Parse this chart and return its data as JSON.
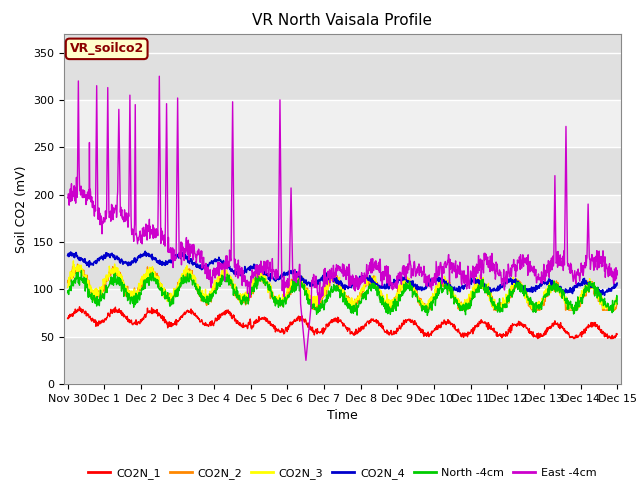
{
  "title": "VR North Vaisala Profile",
  "ylabel": "Soil CO2 (mV)",
  "xlabel": "Time",
  "annotation": "VR_soilco2",
  "ylim": [
    0,
    370
  ],
  "yticks": [
    0,
    50,
    100,
    150,
    200,
    250,
    300,
    350
  ],
  "legend_labels": [
    "CO2N_1",
    "CO2N_2",
    "CO2N_3",
    "CO2N_4",
    "North -4cm",
    "East -4cm"
  ],
  "legend_colors": [
    "#ff0000",
    "#ff8800",
    "#ffff00",
    "#0000cc",
    "#00cc00",
    "#cc00cc"
  ],
  "line_colors": [
    "#ff0000",
    "#ff8800",
    "#ffff00",
    "#0000cc",
    "#00cc00",
    "#cc00cc"
  ],
  "xtick_labels": [
    "Nov 30",
    "Dec 1",
    "Dec 2",
    "Dec 3",
    "Dec 4",
    "Dec 5",
    "Dec 6",
    "Dec 7",
    "Dec 8",
    "Dec 9",
    "Dec 10",
    "Dec 11",
    "Dec 12",
    "Dec 13",
    "Dec 14",
    "Dec 15"
  ],
  "background_color": "#ffffff",
  "plot_bg_color": "#e0e0e0",
  "white_band_ranges": [
    [
      50,
      100
    ],
    [
      150,
      200
    ],
    [
      250,
      300
    ]
  ],
  "title_fontsize": 11,
  "axis_fontsize": 9,
  "tick_fontsize": 8
}
